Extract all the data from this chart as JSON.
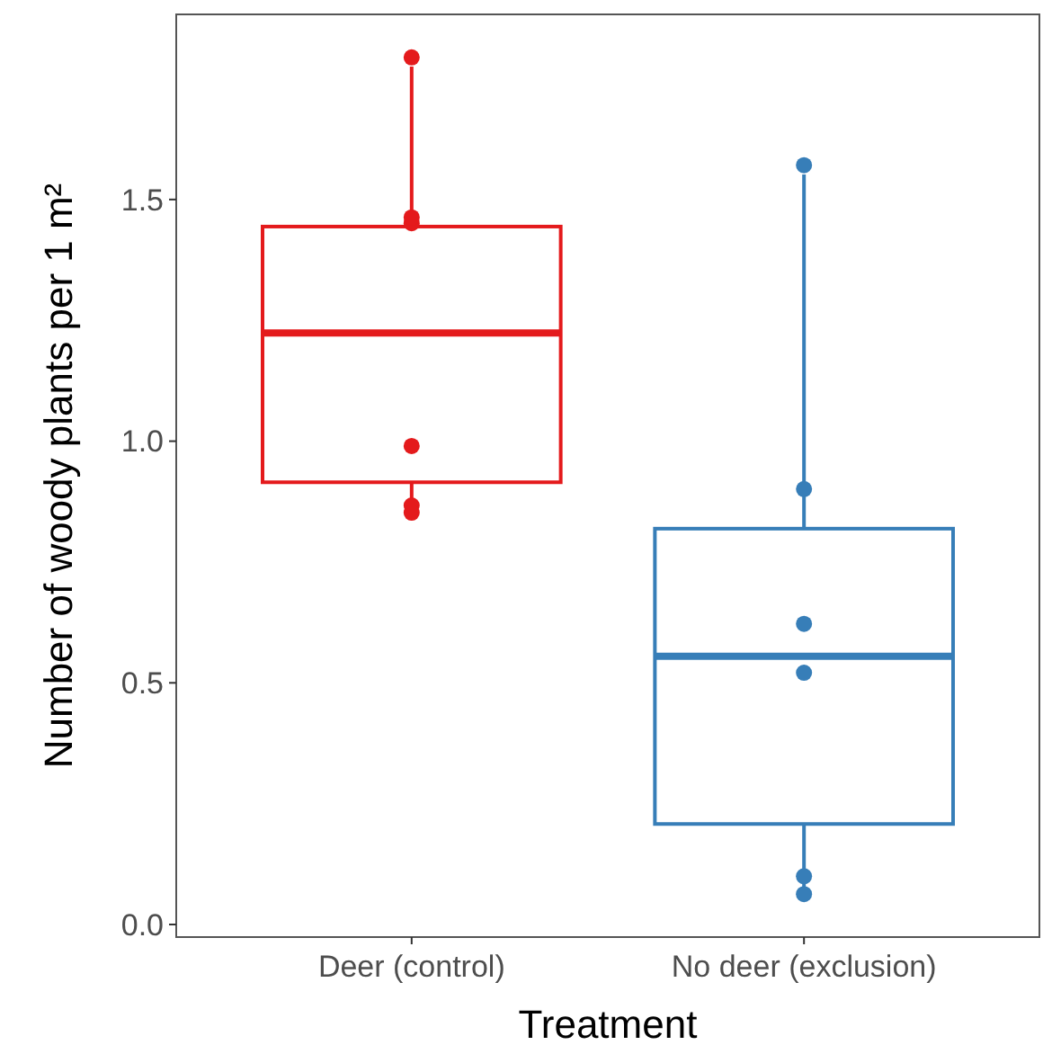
{
  "chart_data": {
    "type": "box",
    "xlabel": "Treatment",
    "ylabel": "Number of woody plants per 1 m²",
    "categories": [
      "Deer (control)",
      "No deer (exclusion)"
    ],
    "ylim": [
      -0.026,
      1.883
    ],
    "yticks": [
      {
        "value": 0,
        "label": "0.0"
      },
      {
        "value": 0.5,
        "label": "0.5"
      },
      {
        "value": 1,
        "label": "1.0"
      },
      {
        "value": 1.5,
        "label": "1.5"
      }
    ],
    "grid": false,
    "series": [
      {
        "type": "box",
        "colors": [
          "#e41a1c",
          "#377eb8"
        ],
        "boxes": [
          {
            "low": 0.837,
            "q1": 0.915,
            "median": 1.224,
            "q3": 1.444,
            "high": 1.775
          },
          {
            "low": 0.06,
            "q1": 0.208,
            "median": 0.555,
            "q3": 0.819,
            "high": 1.552
          }
        ]
      },
      {
        "type": "scatter",
        "colors": [
          "#e41a1c",
          "#e41a1c",
          "#e41a1c",
          "#e41a1c",
          "#e41a1c",
          "#e41a1c",
          "#377eb8",
          "#377eb8",
          "#377eb8",
          "#377eb8",
          "#377eb8",
          "#377eb8"
        ],
        "x": [
          "Deer (control)",
          "Deer (control)",
          "Deer (control)",
          "Deer (control)",
          "Deer (control)",
          "Deer (control)",
          "No deer (exclusion)",
          "No deer (exclusion)",
          "No deer (exclusion)",
          "No deer (exclusion)",
          "No deer (exclusion)",
          "No deer (exclusion)"
        ],
        "values": [
          1.794,
          1.451,
          1.463,
          0.99,
          0.867,
          0.852,
          1.571,
          0.901,
          0.622,
          0.521,
          0.1,
          0.063
        ],
        "marker": "circle"
      }
    ]
  }
}
